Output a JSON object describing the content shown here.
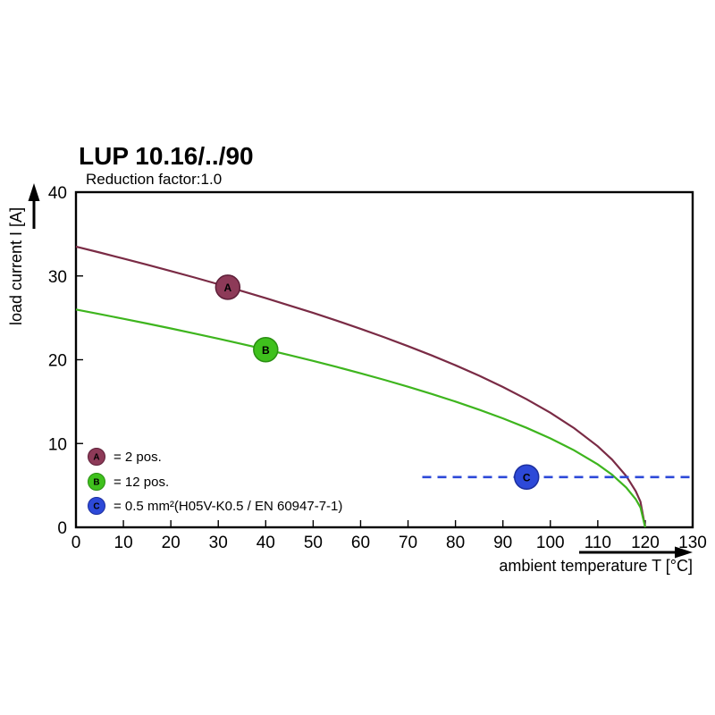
{
  "chart_data": {
    "type": "line",
    "title": "LUP 10.16/../90",
    "subtitle": "Reduction factor:1.0",
    "xlabel": "ambient temperature T [°C]",
    "ylabel": "load current I [A]",
    "xlim": [
      0,
      130
    ],
    "ylim": [
      0,
      40
    ],
    "x_ticks": [
      0,
      10,
      20,
      30,
      40,
      50,
      60,
      70,
      80,
      90,
      100,
      110,
      120,
      130
    ],
    "y_ticks": [
      0,
      10,
      20,
      30,
      40
    ],
    "grid": false,
    "legend_position": "inside-bottom-left",
    "series": [
      {
        "name": "A",
        "label": "2 pos.",
        "color": "#7a2b45",
        "width": 2.2,
        "dash": false,
        "points": [
          [
            0,
            33.5
          ],
          [
            5,
            32.8
          ],
          [
            10,
            32.07
          ],
          [
            15,
            31.34
          ],
          [
            20,
            30.58
          ],
          [
            25,
            29.81
          ],
          [
            30,
            29.01
          ],
          [
            35,
            28.19
          ],
          [
            40,
            27.35
          ],
          [
            45,
            26.48
          ],
          [
            50,
            25.59
          ],
          [
            55,
            24.66
          ],
          [
            60,
            23.69
          ],
          [
            65,
            22.68
          ],
          [
            70,
            21.62
          ],
          [
            75,
            20.51
          ],
          [
            80,
            19.34
          ],
          [
            85,
            18.09
          ],
          [
            90,
            16.75
          ],
          [
            95,
            15.29
          ],
          [
            100,
            13.68
          ],
          [
            105,
            11.84
          ],
          [
            110,
            9.67
          ],
          [
            113,
            8.09
          ],
          [
            116,
            6.12
          ],
          [
            118,
            4.32
          ],
          [
            119,
            3.06
          ],
          [
            120,
            0
          ]
        ]
      },
      {
        "name": "B",
        "label": "12 pos.",
        "color": "#3eb51e",
        "width": 2.2,
        "dash": false,
        "points": [
          [
            0,
            26
          ],
          [
            5,
            25.45
          ],
          [
            10,
            24.89
          ],
          [
            15,
            24.32
          ],
          [
            20,
            23.73
          ],
          [
            25,
            23.13
          ],
          [
            30,
            22.52
          ],
          [
            35,
            21.88
          ],
          [
            40,
            21.23
          ],
          [
            45,
            20.55
          ],
          [
            50,
            19.86
          ],
          [
            55,
            19.14
          ],
          [
            60,
            18.38
          ],
          [
            65,
            17.6
          ],
          [
            70,
            16.78
          ],
          [
            75,
            15.92
          ],
          [
            80,
            15.01
          ],
          [
            85,
            14.04
          ],
          [
            90,
            13.0
          ],
          [
            95,
            11.87
          ],
          [
            100,
            10.61
          ],
          [
            105,
            9.19
          ],
          [
            110,
            7.51
          ],
          [
            113,
            6.28
          ],
          [
            116,
            4.75
          ],
          [
            118,
            3.36
          ],
          [
            119,
            2.37
          ],
          [
            120,
            0
          ]
        ]
      },
      {
        "name": "C",
        "label": "0.5 mm²(H05V-K0.5 / EN 60947-7-1)",
        "color": "#2d49d8",
        "width": 2.6,
        "dash": true,
        "points": [
          [
            73,
            6
          ],
          [
            130,
            6
          ]
        ]
      }
    ],
    "markers": [
      {
        "letter": "A",
        "x": 32,
        "y": 28.65,
        "fill": "#8d3a58",
        "ring": "#5d1f38"
      },
      {
        "letter": "B",
        "x": 40,
        "y": 21.2,
        "fill": "#3fc11d",
        "ring": "#2a8e12"
      },
      {
        "letter": "C",
        "x": 95,
        "y": 6,
        "fill": "#2d49d8",
        "ring": "#1c2f9e"
      }
    ],
    "legend": [
      {
        "letter": "A",
        "color": "#8d3a58",
        "ring": "#5d1f38",
        "text": "= 2 pos."
      },
      {
        "letter": "B",
        "color": "#3fc11d",
        "ring": "#2a8e12",
        "text": "= 12 pos."
      },
      {
        "letter": "C",
        "color": "#2d49d8",
        "ring": "#1c2f9e",
        "text": "= 0.5 mm²(H05V-K0.5 / EN 60947-7-1)"
      }
    ]
  }
}
